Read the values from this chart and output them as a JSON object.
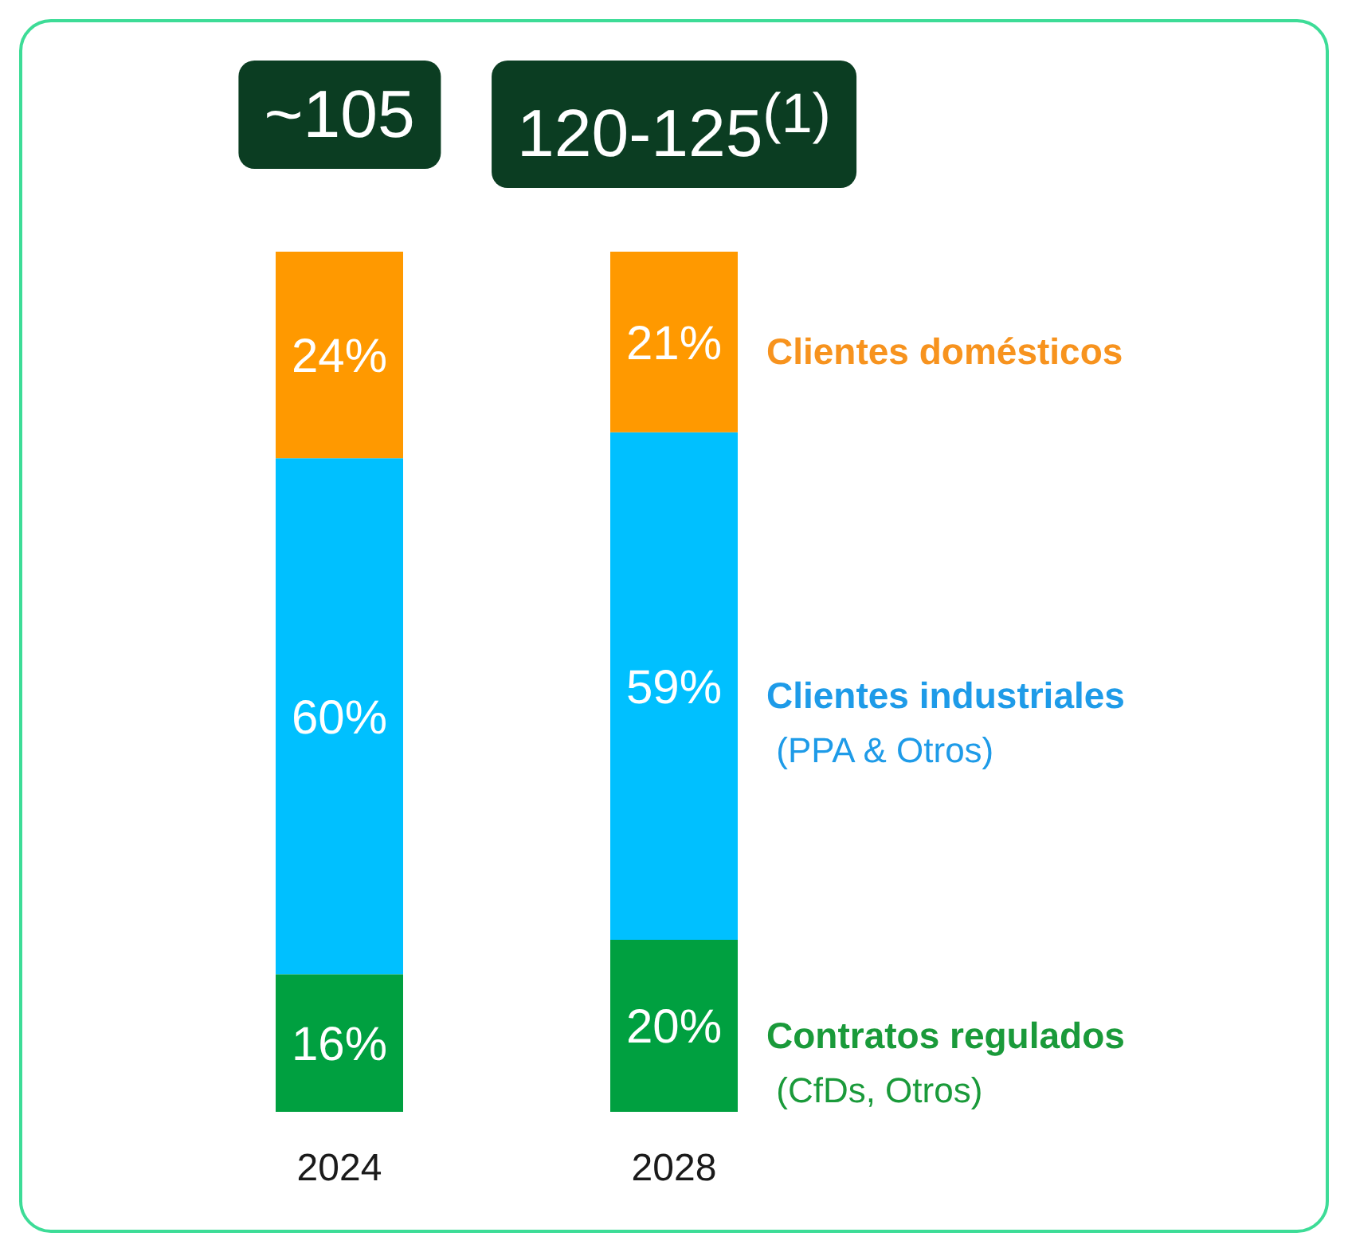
{
  "chart_data": {
    "type": "bar",
    "stacked": true,
    "categories": [
      "2024",
      "2028"
    ],
    "series": [
      {
        "name": "Contratos regulados (CfDs, Otros)",
        "color": "#00a040",
        "values": [
          16,
          20
        ],
        "value_labels": [
          "16%",
          "20%"
        ]
      },
      {
        "name": "Clientes industriales (PPA & Otros)",
        "color": "#00c0ff",
        "values": [
          60,
          59
        ],
        "value_labels": [
          "60%",
          "59%"
        ]
      },
      {
        "name": "Clientes domésticos",
        "color": "#ff9900",
        "values": [
          24,
          21
        ],
        "value_labels": [
          "24%",
          "21%"
        ]
      }
    ],
    "annotations": [
      "~105",
      "120-125$^{(1)}$"
    ],
    "legend": false,
    "grid": false
  }
}
